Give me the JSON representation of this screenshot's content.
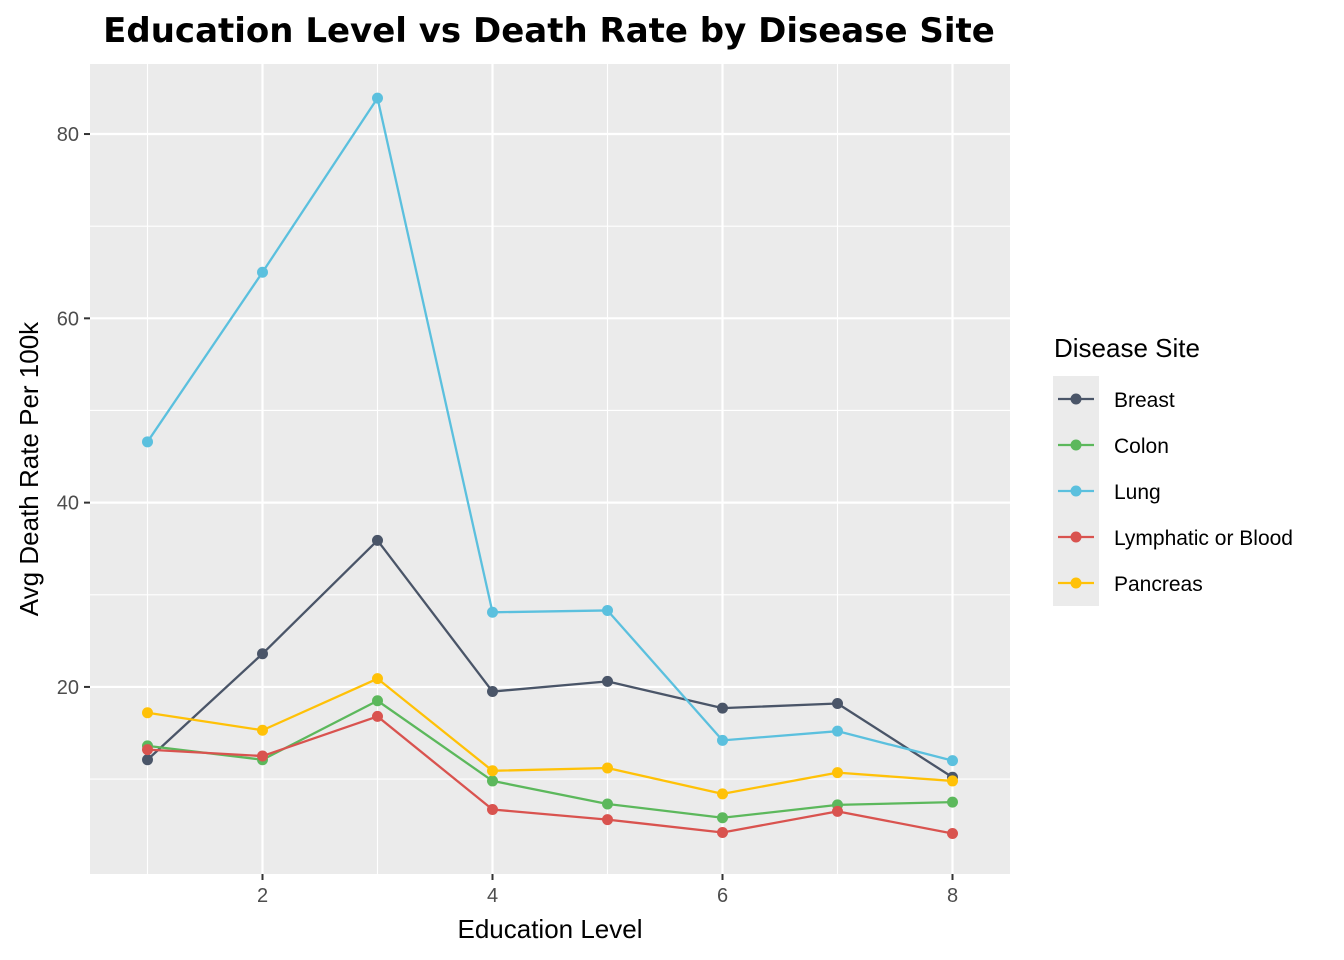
{
  "chart_data": {
    "type": "line",
    "title": "Education Level vs Death Rate by Disease Site",
    "xlabel": "Education Level",
    "ylabel": "Avg Death Rate Per 100k",
    "x": [
      1,
      2,
      3,
      4,
      5,
      6,
      7,
      8
    ],
    "xlim": [
      0.5,
      8.5
    ],
    "ylim": [
      -0.3,
      87.6
    ],
    "xticks": [
      2,
      4,
      6,
      8
    ],
    "yticks": [
      20,
      40,
      60,
      80
    ],
    "xtick_labels": [
      "2",
      "4",
      "6",
      "8"
    ],
    "ytick_labels": [
      "20",
      "40",
      "60",
      "80"
    ],
    "grid": true,
    "legend": {
      "title": "Disease Site",
      "position": "right"
    },
    "series": [
      {
        "name": "Breast",
        "color": "#4a5568",
        "values": [
          12.1,
          23.6,
          35.9,
          19.5,
          20.6,
          17.7,
          18.2,
          10.2
        ]
      },
      {
        "name": "Colon",
        "color": "#5cb85c",
        "values": [
          13.6,
          12.1,
          18.5,
          9.8,
          7.3,
          5.8,
          7.2,
          7.5
        ]
      },
      {
        "name": "Lung",
        "color": "#5bc0de",
        "values": [
          46.6,
          65.0,
          83.9,
          28.1,
          28.3,
          14.2,
          15.2,
          12.0
        ]
      },
      {
        "name": "Lymphatic or Blood",
        "color": "#d9534f",
        "values": [
          13.2,
          12.5,
          16.8,
          6.7,
          5.6,
          4.2,
          6.5,
          4.1
        ]
      },
      {
        "name": "Pancreas",
        "color": "#ffc107",
        "values": [
          17.2,
          15.3,
          20.9,
          10.9,
          11.2,
          8.4,
          10.7,
          9.8
        ]
      }
    ]
  }
}
